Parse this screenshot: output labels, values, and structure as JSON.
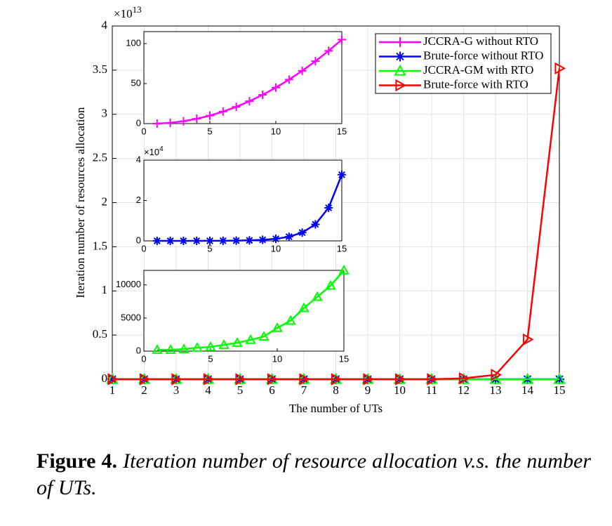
{
  "chart_data": [
    {
      "type": "line",
      "xlabel": "The number of UTs",
      "ylabel": "Iteration number of resources allocation",
      "y_multiplier": {
        "base": "×10",
        "exponent": "13"
      },
      "x": [
        1,
        2,
        3,
        4,
        5,
        6,
        7,
        8,
        9,
        10,
        11,
        12,
        13,
        14,
        15
      ],
      "xlim": [
        1,
        15
      ],
      "xticks": [
        1,
        2,
        3,
        4,
        5,
        6,
        7,
        8,
        9,
        10,
        11,
        12,
        13,
        14,
        15
      ],
      "ylim": [
        0,
        4
      ],
      "yticks": [
        0,
        0.5,
        1,
        1.5,
        2,
        2.5,
        3,
        3.5,
        4
      ],
      "grid": true,
      "legend": "upper right",
      "series": [
        {
          "name": "JCCRA-G without RTO",
          "color": "#ff00ff",
          "marker": "plus",
          "values": [
            0,
            0,
            0,
            0,
            0,
            0,
            0,
            0,
            0,
            0,
            0,
            0,
            0,
            0,
            0
          ]
        },
        {
          "name": "Brute-force without RTO",
          "color": "#0000ff",
          "marker": "asterisk",
          "values": [
            0,
            0,
            0,
            0,
            0,
            0,
            0,
            0,
            0,
            0,
            0,
            0,
            0,
            0,
            0
          ]
        },
        {
          "name": "JCCRA-GM with RTO",
          "color": "#00ff00",
          "marker": "triangle-up",
          "values": [
            0,
            0,
            0,
            0,
            0,
            0,
            0,
            0,
            0,
            0,
            0,
            0,
            0,
            0,
            0
          ]
        },
        {
          "name": "Brute-force with RTO",
          "color": "#ff0000",
          "marker": "triangle-right",
          "values": [
            0,
            0,
            0,
            0,
            0,
            0,
            0,
            0,
            0,
            0,
            0,
            0.01,
            0.05,
            0.45,
            3.52
          ]
        }
      ]
    },
    {
      "type": "line",
      "x": [
        1,
        2,
        3,
        4,
        5,
        6,
        7,
        8,
        9,
        10,
        11,
        12,
        13,
        14,
        15
      ],
      "xlim": [
        0,
        15
      ],
      "xticks": [
        0,
        5,
        10,
        15
      ],
      "ylim": [
        0,
        115
      ],
      "yticks": [
        0,
        50,
        100
      ],
      "grid": false,
      "series": [
        {
          "color": "#ff00ff",
          "marker": "plus",
          "values": [
            0,
            1,
            3,
            6,
            10,
            15,
            21,
            28,
            36,
            45,
            55,
            66,
            78,
            91,
            105
          ]
        }
      ]
    },
    {
      "type": "line",
      "y_multiplier": {
        "base": "×10",
        "exponent": "4"
      },
      "x": [
        1,
        2,
        3,
        4,
        5,
        6,
        7,
        8,
        9,
        10,
        11,
        12,
        13,
        14,
        15
      ],
      "xlim": [
        0,
        15
      ],
      "xticks": [
        0,
        5,
        10,
        15
      ],
      "ylim": [
        0,
        4
      ],
      "yticks": [
        0,
        2,
        4
      ],
      "grid": false,
      "series": [
        {
          "color": "#0000ff",
          "marker": "asterisk",
          "values": [
            0.0002,
            0.0004,
            0.0008,
            0.0016,
            0.0032,
            0.0064,
            0.0128,
            0.0256,
            0.0512,
            0.1024,
            0.2048,
            0.4096,
            0.8192,
            1.6384,
            3.2768
          ]
        }
      ]
    },
    {
      "type": "line",
      "x": [
        1,
        2,
        3,
        4,
        5,
        6,
        7,
        8,
        9,
        10,
        11,
        12,
        13,
        14,
        15
      ],
      "xlim": [
        0,
        15
      ],
      "xticks": [
        0,
        5,
        10,
        15
      ],
      "ylim": [
        0,
        12200
      ],
      "yticks": [
        0,
        5000,
        10000
      ],
      "grid": false,
      "series": [
        {
          "color": "#00ff00",
          "marker": "triangle-up",
          "values": [
            200,
            200,
            300,
            520,
            630,
            950,
            1260,
            1700,
            2200,
            3500,
            4600,
            6500,
            8200,
            9900,
            12200
          ]
        }
      ]
    }
  ],
  "caption": {
    "label": "Figure 4.",
    "text": "Iteration number of resource allocation v.s. the number of UTs."
  }
}
